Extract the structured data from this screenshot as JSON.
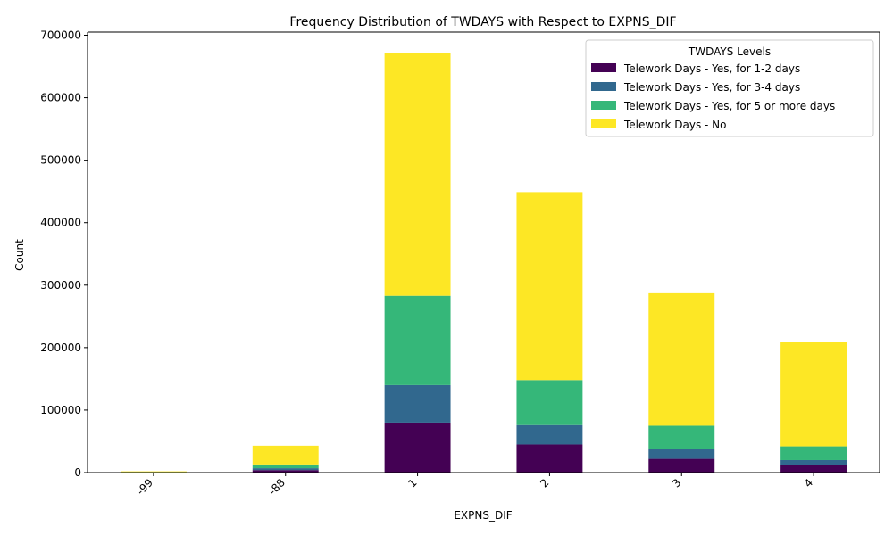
{
  "chart_data": {
    "type": "bar",
    "stacked": true,
    "title": "Frequency Distribution of TWDAYS with Respect to EXPNS_DIF",
    "xlabel": "EXPNS_DIF",
    "ylabel": "Count",
    "categories": [
      "-99",
      "-88",
      "1",
      "2",
      "3",
      "4"
    ],
    "ylim": [
      0,
      705000
    ],
    "yticks": [
      "0",
      "100000",
      "200000",
      "300000",
      "400000",
      "500000",
      "600000",
      "700000"
    ],
    "legend_title": "TWDAYS Levels",
    "legend_position": "top-right",
    "grid": false,
    "series": [
      {
        "name": "Telework Days - Yes, for 1-2 days",
        "color": "#440154",
        "values": [
          300,
          4000,
          80000,
          45000,
          22000,
          12000
        ]
      },
      {
        "name": "Telework Days - Yes, for 3-4 days",
        "color": "#31688e",
        "values": [
          200,
          3000,
          60000,
          31000,
          16000,
          8000
        ]
      },
      {
        "name": "Telework Days - Yes, for 5 or more days",
        "color": "#35b779",
        "values": [
          500,
          6000,
          143000,
          72000,
          37000,
          22000
        ]
      },
      {
        "name": "Telework Days - No",
        "color": "#fde725",
        "values": [
          1000,
          30000,
          389000,
          301000,
          212000,
          167000
        ]
      }
    ]
  }
}
